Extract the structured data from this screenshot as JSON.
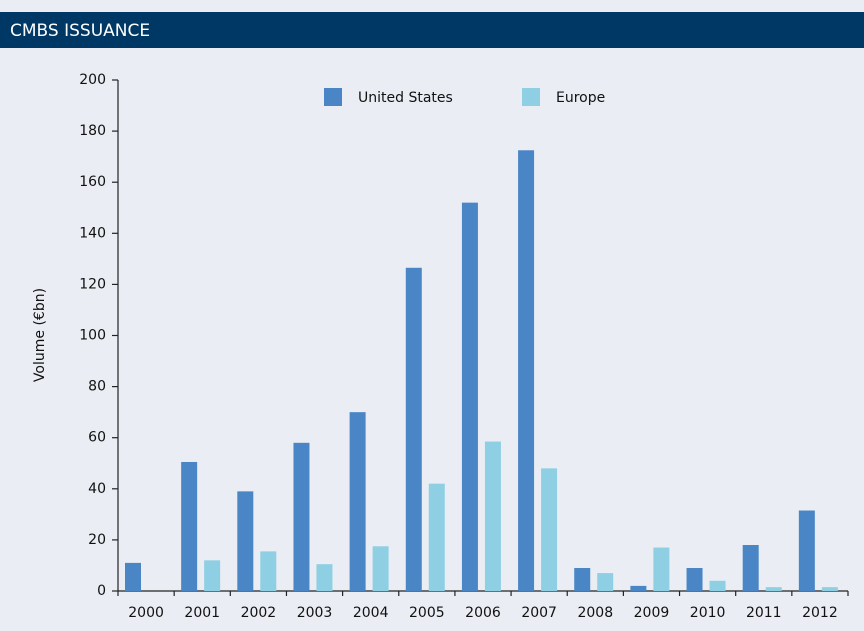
{
  "chart_data": {
    "type": "bar",
    "title": "CMBS ISSUANCE",
    "y_label": "Volume (€bn)",
    "categories": [
      "2000",
      "2001",
      "2002",
      "2003",
      "2004",
      "2005",
      "2006",
      "2007",
      "2008",
      "2009",
      "2010",
      "2011",
      "2012"
    ],
    "series": [
      {
        "name": "United States",
        "color": "#4a86c5",
        "values": [
          11,
          50.5,
          39,
          58,
          70,
          126.5,
          152,
          172.5,
          9,
          2,
          9,
          18,
          31.5
        ]
      },
      {
        "name": "Europe",
        "color": "#8ecfe3",
        "values": [
          0,
          12,
          15.5,
          10.5,
          17.5,
          42,
          58.5,
          48,
          7,
          17,
          4,
          1.5,
          1.5
        ]
      }
    ],
    "ylim": [
      0,
      200
    ],
    "yticks": [
      0,
      20,
      40,
      60,
      80,
      100,
      120,
      140,
      160,
      180,
      200
    ]
  }
}
